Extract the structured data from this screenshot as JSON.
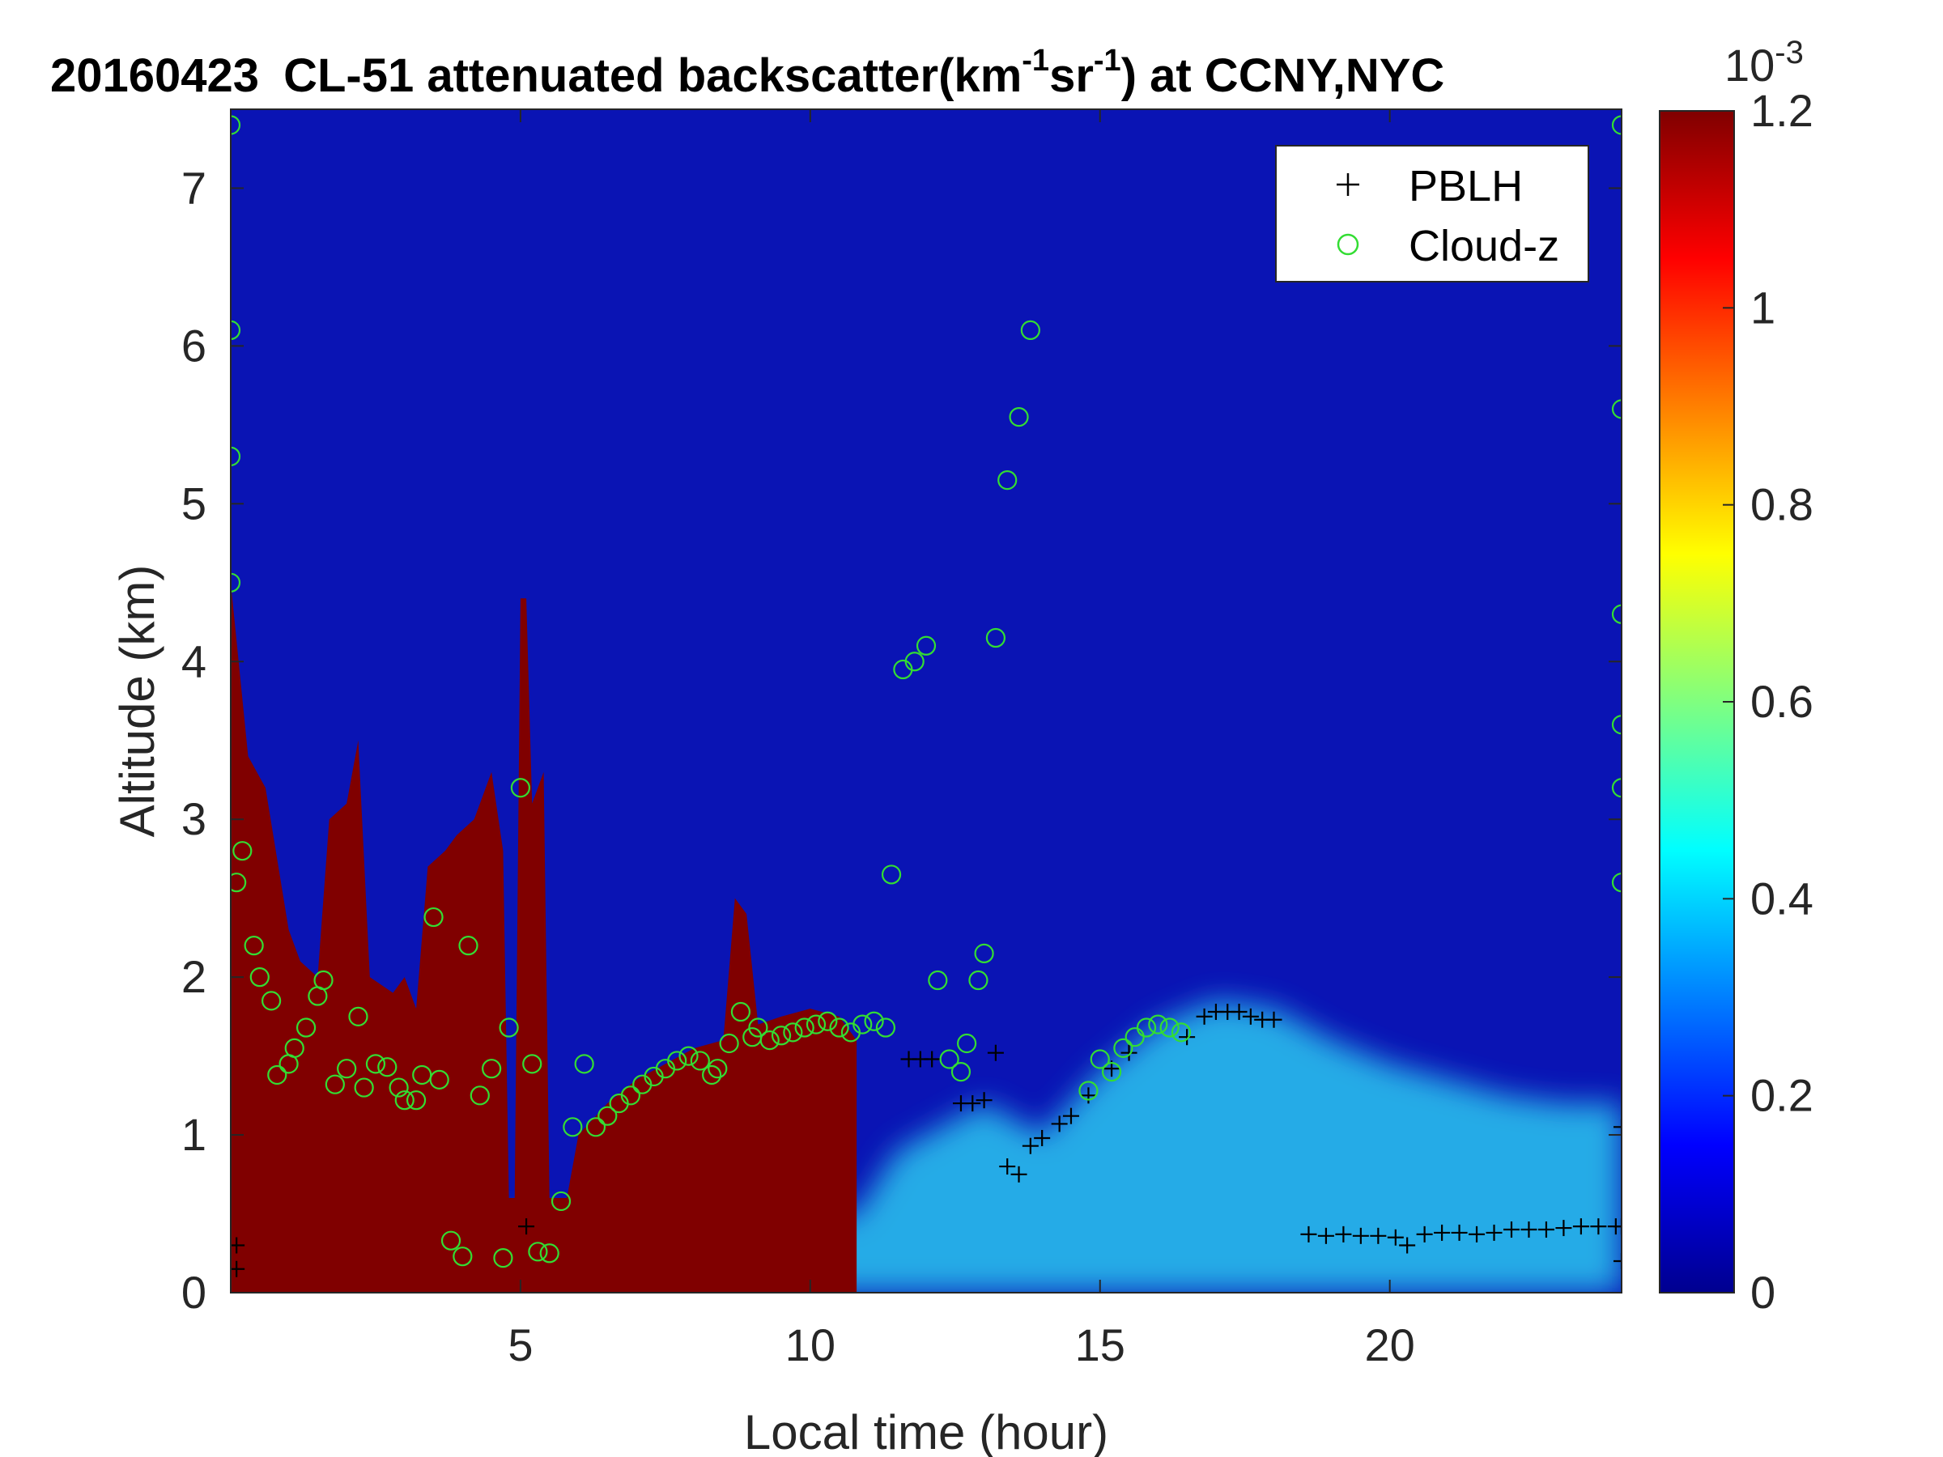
{
  "chart_data": {
    "type": "heatmap",
    "title": {
      "date": "20160423",
      "prefix": "CL-51 attenuated backscatter(km",
      "sup1": "-1",
      "mid": "sr",
      "sup2": "-1",
      "suffix": ") at CCNY,NYC"
    },
    "xlabel": "Local time (hour)",
    "ylabel": "Altitude (km)",
    "xlim": [
      0,
      24
    ],
    "ylim": [
      0,
      7.5
    ],
    "xticks": [
      5,
      10,
      15,
      20
    ],
    "yticks": [
      0,
      1,
      2,
      3,
      4,
      5,
      6,
      7
    ],
    "colorbar": {
      "colormap": "jet",
      "range": [
        0,
        1.2
      ],
      "ticks": [
        0,
        0.2,
        0.4,
        0.6,
        0.8,
        1,
        1.2
      ],
      "tick_labels": [
        "0",
        "0.2",
        "0.4",
        "0.6",
        "0.8",
        "1",
        "1.2"
      ],
      "exponent_base": "10",
      "exponent": "-3"
    },
    "legend": {
      "placement": "top-right",
      "entries": [
        {
          "label": "PBLH",
          "marker": "plus",
          "color": "#000000"
        },
        {
          "label": "Cloud-z",
          "marker": "circle",
          "color": "#33dd33"
        }
      ]
    },
    "background": {
      "aerosol_layer": [
        [
          0,
          0.45
        ],
        [
          2,
          0.45
        ],
        [
          6,
          0.45
        ],
        [
          10,
          0.45
        ],
        [
          10.8,
          0.5
        ],
        [
          11.5,
          0.9
        ],
        [
          12.5,
          1.1
        ],
        [
          13,
          1.2
        ],
        [
          14,
          1.0
        ],
        [
          15,
          1.4
        ],
        [
          16,
          1.7
        ],
        [
          17,
          1.85
        ],
        [
          18,
          1.8
        ],
        [
          19,
          1.6
        ],
        [
          20,
          1.45
        ],
        [
          21,
          1.35
        ],
        [
          22,
          1.25
        ],
        [
          23,
          1.2
        ],
        [
          24,
          1.2
        ]
      ],
      "dense_region_top": [
        [
          0,
          4.5
        ],
        [
          0.3,
          3.4
        ],
        [
          0.6,
          3.2
        ],
        [
          1,
          2.3
        ],
        [
          1.2,
          2.1
        ],
        [
          1.5,
          2.0
        ],
        [
          1.7,
          3.0
        ],
        [
          2,
          3.1
        ],
        [
          2.2,
          3.5
        ],
        [
          2.4,
          2.0
        ],
        [
          2.8,
          1.9
        ],
        [
          3,
          2.0
        ],
        [
          3.2,
          1.8
        ],
        [
          3.4,
          2.7
        ],
        [
          3.7,
          2.8
        ],
        [
          3.9,
          2.9
        ],
        [
          4.2,
          3.0
        ],
        [
          4.5,
          3.3
        ],
        [
          4.7,
          2.8
        ],
        [
          4.8,
          0.6
        ],
        [
          4.9,
          0.6
        ],
        [
          5.0,
          4.4
        ],
        [
          5.1,
          4.4
        ],
        [
          5.2,
          3.1
        ],
        [
          5.4,
          3.3
        ],
        [
          5.5,
          0.6
        ],
        [
          5.8,
          0.6
        ],
        [
          6.0,
          1.0
        ],
        [
          6.5,
          1.2
        ],
        [
          7,
          1.35
        ],
        [
          7.5,
          1.45
        ],
        [
          8,
          1.55
        ],
        [
          8.5,
          1.6
        ],
        [
          8.7,
          2.5
        ],
        [
          8.9,
          2.4
        ],
        [
          9.1,
          1.7
        ],
        [
          9.5,
          1.75
        ],
        [
          10,
          1.8
        ],
        [
          10.5,
          1.75
        ],
        [
          10.8,
          1.6
        ]
      ]
    },
    "pblh": [
      {
        "x": 5.1,
        "y": 0.42
      },
      {
        "x": 11.7,
        "y": 1.48
      },
      {
        "x": 11.9,
        "y": 1.48
      },
      {
        "x": 12.1,
        "y": 1.48
      },
      {
        "x": 12.6,
        "y": 1.2
      },
      {
        "x": 12.8,
        "y": 1.2
      },
      {
        "x": 13.0,
        "y": 1.22
      },
      {
        "x": 13.2,
        "y": 1.52
      },
      {
        "x": 13.4,
        "y": 0.8
      },
      {
        "x": 13.6,
        "y": 0.75
      },
      {
        "x": 13.8,
        "y": 0.93
      },
      {
        "x": 14.0,
        "y": 0.98
      },
      {
        "x": 14.3,
        "y": 1.07
      },
      {
        "x": 14.5,
        "y": 1.12
      },
      {
        "x": 14.8,
        "y": 1.25
      },
      {
        "x": 15.2,
        "y": 1.42
      },
      {
        "x": 15.5,
        "y": 1.52
      },
      {
        "x": 16.5,
        "y": 1.62
      },
      {
        "x": 16.8,
        "y": 1.75
      },
      {
        "x": 17.0,
        "y": 1.78
      },
      {
        "x": 17.2,
        "y": 1.78
      },
      {
        "x": 17.4,
        "y": 1.78
      },
      {
        "x": 17.6,
        "y": 1.75
      },
      {
        "x": 17.8,
        "y": 1.73
      },
      {
        "x": 18.0,
        "y": 1.73
      },
      {
        "x": 18.6,
        "y": 0.37
      },
      {
        "x": 18.9,
        "y": 0.36
      },
      {
        "x": 19.2,
        "y": 0.37
      },
      {
        "x": 19.5,
        "y": 0.36
      },
      {
        "x": 19.8,
        "y": 0.36
      },
      {
        "x": 20.1,
        "y": 0.35
      },
      {
        "x": 20.3,
        "y": 0.3
      },
      {
        "x": 20.6,
        "y": 0.37
      },
      {
        "x": 20.9,
        "y": 0.38
      },
      {
        "x": 21.2,
        "y": 0.38
      },
      {
        "x": 21.5,
        "y": 0.37
      },
      {
        "x": 21.8,
        "y": 0.38
      },
      {
        "x": 22.1,
        "y": 0.4
      },
      {
        "x": 22.4,
        "y": 0.4
      },
      {
        "x": 22.7,
        "y": 0.4
      },
      {
        "x": 23.0,
        "y": 0.41
      },
      {
        "x": 23.3,
        "y": 0.42
      },
      {
        "x": 23.6,
        "y": 0.42
      },
      {
        "x": 23.9,
        "y": 0.42
      },
      {
        "x": 24.0,
        "y": 0.42
      },
      {
        "x": 0.1,
        "y": 0.3
      },
      {
        "x": 0.1,
        "y": 0.15
      },
      {
        "x": 24.0,
        "y": 1.05
      },
      {
        "x": 24.0,
        "y": 0.2
      }
    ],
    "cloud_z": [
      {
        "x": 0.1,
        "y": 2.6
      },
      {
        "x": 0.2,
        "y": 2.8
      },
      {
        "x": 0.4,
        "y": 2.2
      },
      {
        "x": 0.5,
        "y": 2.0
      },
      {
        "x": 0.7,
        "y": 1.85
      },
      {
        "x": 0.8,
        "y": 1.38
      },
      {
        "x": 1.0,
        "y": 1.45
      },
      {
        "x": 1.1,
        "y": 1.55
      },
      {
        "x": 1.3,
        "y": 1.68
      },
      {
        "x": 1.5,
        "y": 1.88
      },
      {
        "x": 1.6,
        "y": 1.98
      },
      {
        "x": 1.8,
        "y": 1.32
      },
      {
        "x": 2.0,
        "y": 1.42
      },
      {
        "x": 2.2,
        "y": 1.75
      },
      {
        "x": 2.3,
        "y": 1.3
      },
      {
        "x": 2.5,
        "y": 1.45
      },
      {
        "x": 2.7,
        "y": 1.43
      },
      {
        "x": 2.9,
        "y": 1.3
      },
      {
        "x": 3.0,
        "y": 1.22
      },
      {
        "x": 3.2,
        "y": 1.22
      },
      {
        "x": 3.3,
        "y": 1.38
      },
      {
        "x": 3.5,
        "y": 2.38
      },
      {
        "x": 3.6,
        "y": 1.35
      },
      {
        "x": 3.8,
        "y": 0.33
      },
      {
        "x": 4.0,
        "y": 0.23
      },
      {
        "x": 4.1,
        "y": 2.2
      },
      {
        "x": 4.3,
        "y": 1.25
      },
      {
        "x": 4.5,
        "y": 1.42
      },
      {
        "x": 4.7,
        "y": 0.22
      },
      {
        "x": 4.8,
        "y": 1.68
      },
      {
        "x": 5.0,
        "y": 3.2
      },
      {
        "x": 5.2,
        "y": 1.45
      },
      {
        "x": 5.3,
        "y": 0.26
      },
      {
        "x": 5.5,
        "y": 0.25
      },
      {
        "x": 5.7,
        "y": 0.58
      },
      {
        "x": 5.9,
        "y": 1.05
      },
      {
        "x": 6.1,
        "y": 1.45
      },
      {
        "x": 6.3,
        "y": 1.05
      },
      {
        "x": 6.5,
        "y": 1.12
      },
      {
        "x": 6.7,
        "y": 1.2
      },
      {
        "x": 6.9,
        "y": 1.25
      },
      {
        "x": 7.1,
        "y": 1.32
      },
      {
        "x": 7.3,
        "y": 1.37
      },
      {
        "x": 7.5,
        "y": 1.42
      },
      {
        "x": 7.7,
        "y": 1.47
      },
      {
        "x": 7.9,
        "y": 1.5
      },
      {
        "x": 8.1,
        "y": 1.47
      },
      {
        "x": 8.3,
        "y": 1.38
      },
      {
        "x": 8.4,
        "y": 1.42
      },
      {
        "x": 8.6,
        "y": 1.58
      },
      {
        "x": 8.8,
        "y": 1.78
      },
      {
        "x": 9.0,
        "y": 1.62
      },
      {
        "x": 9.1,
        "y": 1.68
      },
      {
        "x": 9.3,
        "y": 1.6
      },
      {
        "x": 9.5,
        "y": 1.63
      },
      {
        "x": 9.7,
        "y": 1.65
      },
      {
        "x": 9.9,
        "y": 1.68
      },
      {
        "x": 10.1,
        "y": 1.7
      },
      {
        "x": 10.3,
        "y": 1.72
      },
      {
        "x": 10.5,
        "y": 1.68
      },
      {
        "x": 10.7,
        "y": 1.65
      },
      {
        "x": 10.9,
        "y": 1.7
      },
      {
        "x": 11.1,
        "y": 1.72
      },
      {
        "x": 11.3,
        "y": 1.68
      },
      {
        "x": 11.4,
        "y": 2.65
      },
      {
        "x": 11.6,
        "y": 3.95
      },
      {
        "x": 11.8,
        "y": 4.0
      },
      {
        "x": 12.0,
        "y": 4.1
      },
      {
        "x": 12.2,
        "y": 1.98
      },
      {
        "x": 12.4,
        "y": 1.48
      },
      {
        "x": 12.6,
        "y": 1.4
      },
      {
        "x": 12.7,
        "y": 1.58
      },
      {
        "x": 12.9,
        "y": 1.98
      },
      {
        "x": 13.0,
        "y": 2.15
      },
      {
        "x": 13.2,
        "y": 4.15
      },
      {
        "x": 13.4,
        "y": 5.15
      },
      {
        "x": 13.6,
        "y": 5.55
      },
      {
        "x": 13.8,
        "y": 6.1
      },
      {
        "x": 14.8,
        "y": 1.28
      },
      {
        "x": 15.0,
        "y": 1.48
      },
      {
        "x": 15.2,
        "y": 1.4
      },
      {
        "x": 15.4,
        "y": 1.55
      },
      {
        "x": 15.6,
        "y": 1.62
      },
      {
        "x": 15.8,
        "y": 1.68
      },
      {
        "x": 16.0,
        "y": 1.7
      },
      {
        "x": 16.2,
        "y": 1.68
      },
      {
        "x": 16.4,
        "y": 1.65
      },
      {
        "x": 0.0,
        "y": 4.5
      },
      {
        "x": 0.0,
        "y": 6.1
      },
      {
        "x": 0.0,
        "y": 5.3
      },
      {
        "x": 0.0,
        "y": 7.4
      },
      {
        "x": 24.0,
        "y": 7.4
      },
      {
        "x": 24.0,
        "y": 5.6
      },
      {
        "x": 24.0,
        "y": 3.6
      },
      {
        "x": 24.0,
        "y": 2.6
      },
      {
        "x": 24.0,
        "y": 4.3
      },
      {
        "x": 24.0,
        "y": 3.2
      }
    ]
  }
}
